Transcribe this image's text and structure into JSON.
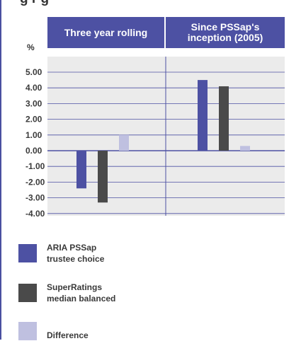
{
  "header": {
    "col1": "Three year rolling",
    "col2_line1": "Since PSSap's",
    "col2_line2": "inception (2005)"
  },
  "top_fragment": "g  r  g",
  "colors": {
    "accent": "#4d51a3",
    "grid": "#4d51a3",
    "plot_bg": "#ebebeb"
  },
  "chart_data": {
    "type": "bar",
    "ylabel": "%",
    "ylim": [
      -4,
      5
    ],
    "yticks": [
      "5.00",
      "4.00",
      "3.00",
      "2.00",
      "1.00",
      "0.00",
      "-1.00",
      "-2.00",
      "-3.00",
      "-4.00"
    ],
    "categories": [
      "Three year rolling",
      "Since PSSap's inception (2005)"
    ],
    "series": [
      {
        "name": "ARIA PSSap trustee choice",
        "color": "#4d51a3",
        "values": [
          -2.4,
          4.5
        ]
      },
      {
        "name": "SuperRatings median balanced",
        "color": "#4a4a4a",
        "values": [
          -3.3,
          4.1
        ]
      },
      {
        "name": "Difference",
        "color": "#bfc0e0",
        "values": [
          1.0,
          0.3
        ]
      }
    ],
    "legend": [
      {
        "line1": "ARIA PSSap",
        "line2": "trustee choice",
        "color": "#4d51a3"
      },
      {
        "line1": "SuperRatings",
        "line2": "median balanced",
        "color": "#4a4a4a"
      },
      {
        "line1": "Difference",
        "line2": "",
        "color": "#bfc0e0"
      }
    ]
  }
}
